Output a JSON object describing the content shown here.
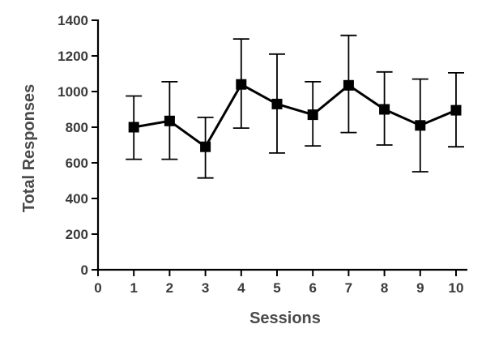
{
  "chart_data": {
    "type": "line",
    "title": "",
    "xlabel": "Sessions",
    "ylabel": "Total Responses",
    "xlim": [
      0,
      10
    ],
    "ylim": [
      0,
      1400
    ],
    "xticks": [
      "0",
      "1",
      "2",
      "3",
      "4",
      "5",
      "6",
      "7",
      "8",
      "9",
      "10"
    ],
    "yticks": [
      "0",
      "200",
      "400",
      "600",
      "800",
      "1000",
      "1200",
      "1400"
    ],
    "grid": false,
    "legend": "none",
    "marker": "square",
    "series": [
      {
        "x": [
          1,
          2,
          3,
          4,
          5,
          6,
          7,
          8,
          9,
          10
        ],
        "y": [
          800,
          835,
          690,
          1040,
          930,
          870,
          1035,
          900,
          810,
          895
        ],
        "error_upper": [
          975,
          1055,
          855,
          1295,
          1210,
          1055,
          1315,
          1110,
          1070,
          1105
        ],
        "error_lower": [
          620,
          620,
          515,
          795,
          655,
          695,
          770,
          700,
          550,
          690
        ]
      }
    ]
  }
}
